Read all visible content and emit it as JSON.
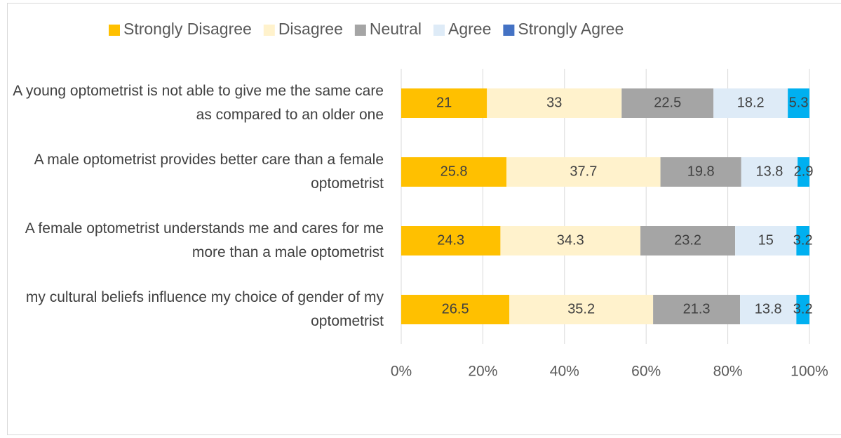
{
  "chart_data": {
    "type": "stacked_bar_horizontal",
    "categories": [
      "A young optometrist is not able to give me the same care as compared to an older one",
      "A male optometrist provides better care than a female optometrist",
      "A female optometrist understands me and cares for me more than a male optometrist",
      "my cultural beliefs influence my choice of gender of my optometrist"
    ],
    "series": [
      {
        "name": "Strongly Disagree",
        "color": "#FFC000",
        "values": [
          21,
          25.8,
          24.3,
          26.5
        ]
      },
      {
        "name": "Disagree",
        "color": "#FFF2CC",
        "values": [
          33,
          37.7,
          34.3,
          35.2
        ]
      },
      {
        "name": "Neutral",
        "color": "#A5A5A5",
        "values": [
          22.5,
          19.8,
          23.2,
          21.3
        ]
      },
      {
        "name": "Agree",
        "color": "#DEEBF7",
        "values": [
          18.2,
          13.8,
          15,
          13.8
        ]
      },
      {
        "name": "Strongly Agree",
        "color": "#00B0F0",
        "legend_color": "#4472C4",
        "values": [
          5.3,
          2.9,
          3.2,
          3.2
        ]
      }
    ],
    "xlim": [
      0,
      100
    ],
    "xticks": [
      {
        "value": 0,
        "label": "0%"
      },
      {
        "value": 20,
        "label": "20%"
      },
      {
        "value": 40,
        "label": "40%"
      },
      {
        "value": 60,
        "label": "60%"
      },
      {
        "value": 80,
        "label": "80%"
      },
      {
        "value": 100,
        "label": "100%"
      }
    ],
    "grid": true,
    "legend": "top"
  }
}
